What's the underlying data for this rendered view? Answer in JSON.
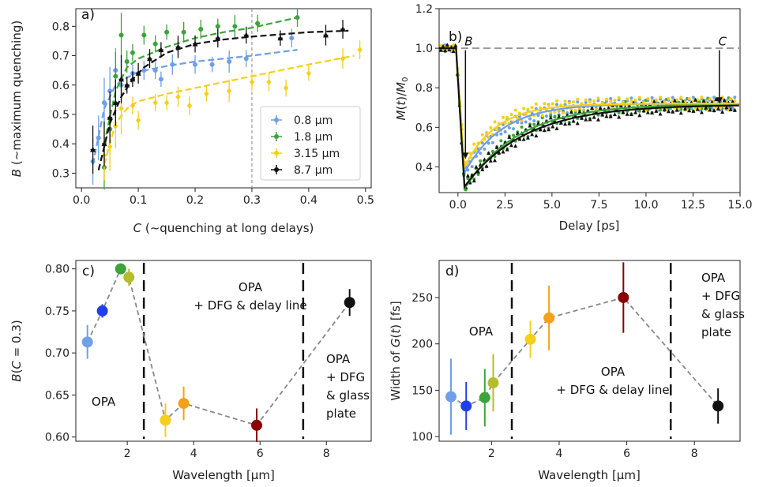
{
  "chart_data": [
    {
      "panel": "a)",
      "type": "scatter",
      "xlabel": "C (~quenching at long delays)",
      "ylabel": "B (~maximum quenching)",
      "xlim": [
        -0.01,
        0.51
      ],
      "ylim": [
        0.25,
        0.86
      ],
      "xticks": [
        "0.0",
        "0.1",
        "0.2",
        "0.3",
        "0.4",
        "0.5"
      ],
      "yticks": [
        "0.3",
        "0.4",
        "0.5",
        "0.6",
        "0.7",
        "0.8"
      ],
      "vline_x": 0.3,
      "legend_position": "lower-right",
      "series": [
        {
          "name": "0.8 μm",
          "color": "#6f9fe6",
          "fit_x": [
            0.02,
            0.04,
            0.06,
            0.08,
            0.1,
            0.15,
            0.2,
            0.25,
            0.3,
            0.38
          ],
          "fit_y": [
            0.33,
            0.52,
            0.6,
            0.625,
            0.645,
            0.665,
            0.68,
            0.69,
            0.7,
            0.72
          ],
          "points": [
            [
              0.02,
              0.34
            ],
            [
              0.03,
              0.42
            ],
            [
              0.04,
              0.54
            ],
            [
              0.05,
              0.58
            ],
            [
              0.06,
              0.65
            ],
            [
              0.07,
              0.6
            ],
            [
              0.09,
              0.64
            ],
            [
              0.11,
              0.65
            ],
            [
              0.13,
              0.65
            ],
            [
              0.14,
              0.62
            ],
            [
              0.16,
              0.67
            ],
            [
              0.2,
              0.67
            ],
            [
              0.23,
              0.67
            ],
            [
              0.26,
              0.68
            ],
            [
              0.29,
              0.69
            ],
            [
              0.37,
              0.76
            ]
          ]
        },
        {
          "name": "1.8 μm",
          "color": "#3da33a",
          "fit_x": [
            0.04,
            0.06,
            0.08,
            0.1,
            0.15,
            0.2,
            0.25,
            0.3,
            0.38
          ],
          "fit_y": [
            0.4,
            0.58,
            0.66,
            0.69,
            0.73,
            0.76,
            0.78,
            0.795,
            0.83
          ],
          "points": [
            [
              0.04,
              0.32
            ],
            [
              0.05,
              0.45
            ],
            [
              0.06,
              0.63
            ],
            [
              0.07,
              0.77
            ],
            [
              0.08,
              0.68
            ],
            [
              0.09,
              0.71
            ],
            [
              0.11,
              0.77
            ],
            [
              0.13,
              0.74
            ],
            [
              0.15,
              0.78
            ],
            [
              0.18,
              0.78
            ],
            [
              0.21,
              0.79
            ],
            [
              0.24,
              0.8
            ],
            [
              0.27,
              0.8
            ],
            [
              0.31,
              0.81
            ],
            [
              0.38,
              0.83
            ]
          ]
        },
        {
          "name": "3.15 μm",
          "color": "#f6cf1b",
          "fit_x": [
            0.04,
            0.06,
            0.08,
            0.1,
            0.15,
            0.2,
            0.25,
            0.3,
            0.4,
            0.48
          ],
          "fit_y": [
            0.33,
            0.47,
            0.52,
            0.545,
            0.57,
            0.59,
            0.61,
            0.63,
            0.67,
            0.7
          ],
          "points": [
            [
              0.04,
              0.36
            ],
            [
              0.05,
              0.39
            ],
            [
              0.06,
              0.46
            ],
            [
              0.07,
              0.52
            ],
            [
              0.09,
              0.53
            ],
            [
              0.1,
              0.48
            ],
            [
              0.13,
              0.54
            ],
            [
              0.15,
              0.54
            ],
            [
              0.17,
              0.56
            ],
            [
              0.19,
              0.53
            ],
            [
              0.22,
              0.57
            ],
            [
              0.26,
              0.58
            ],
            [
              0.3,
              0.61
            ],
            [
              0.33,
              0.61
            ],
            [
              0.36,
              0.59
            ],
            [
              0.4,
              0.64
            ],
            [
              0.46,
              0.69
            ],
            [
              0.49,
              0.72
            ]
          ]
        },
        {
          "name": "8.7 μm",
          "color": "#111111",
          "fit_x": [
            0.03,
            0.05,
            0.07,
            0.09,
            0.11,
            0.15,
            0.2,
            0.25,
            0.3,
            0.4,
            0.47
          ],
          "fit_y": [
            0.31,
            0.47,
            0.56,
            0.62,
            0.66,
            0.71,
            0.74,
            0.755,
            0.765,
            0.78,
            0.785
          ],
          "points": [
            [
              0.02,
              0.38
            ],
            [
              0.04,
              0.4
            ],
            [
              0.05,
              0.49
            ],
            [
              0.06,
              0.54
            ],
            [
              0.07,
              0.62
            ],
            [
              0.08,
              0.6
            ],
            [
              0.09,
              0.62
            ],
            [
              0.1,
              0.64
            ],
            [
              0.12,
              0.69
            ],
            [
              0.14,
              0.72
            ],
            [
              0.17,
              0.73
            ],
            [
              0.2,
              0.74
            ],
            [
              0.24,
              0.76
            ],
            [
              0.29,
              0.77
            ],
            [
              0.35,
              0.76
            ],
            [
              0.43,
              0.77
            ],
            [
              0.46,
              0.79
            ]
          ]
        }
      ]
    },
    {
      "panel": "b)",
      "type": "line",
      "xlabel": "Delay [ps]",
      "ylabel": "M(t)/M0",
      "xlim": [
        -1,
        15
      ],
      "ylim": [
        0.27,
        1.2
      ],
      "xticks": [
        "0.0",
        "2.5",
        "5.0",
        "7.5",
        "10.0",
        "12.5",
        "15.0"
      ],
      "yticks": [
        "0.4",
        "0.6",
        "0.8",
        "1.0",
        "1.2"
      ],
      "hline_y": 1.0,
      "annotations": [
        {
          "text": "B",
          "x": 0.4,
          "arrow_from": 0.99,
          "arrow_to": 0.44
        },
        {
          "text": "C",
          "x": 13.9,
          "arrow_from": 0.99,
          "arrow_to": 0.72
        }
      ],
      "series": [
        {
          "name": "0.8 μm",
          "color": "#6f9fe6",
          "B": 0.37,
          "C": 0.72,
          "tau": 2.0
        },
        {
          "name": "1.8 μm",
          "color": "#3da33a",
          "B": 0.29,
          "C": 0.72,
          "tau": 2.9
        },
        {
          "name": "3.15 μm",
          "color": "#f6cf1b",
          "B": 0.4,
          "C": 0.72,
          "tau": 1.7
        },
        {
          "name": "8.7 μm",
          "color": "#111111",
          "B": 0.3,
          "C": 0.715,
          "tau": 3.2
        }
      ]
    },
    {
      "panel": "c)",
      "type": "scatter",
      "xlabel": "Wavelength [μm]",
      "ylabel": "B(C = 0.3)",
      "xlim": [
        0.45,
        9.35
      ],
      "ylim": [
        0.595,
        0.81
      ],
      "xticks": [
        "2",
        "4",
        "6",
        "8"
      ],
      "yticks": [
        "0.60",
        "0.65",
        "0.70",
        "0.75",
        "0.80"
      ],
      "dividers": [
        2.5,
        7.3
      ],
      "region_labels": [
        {
          "lines": [
            "OPA"
          ]
        },
        {
          "lines": [
            "OPA",
            "+ DFG & delay line"
          ]
        },
        {
          "lines": [
            "OPA",
            "+ DFG",
            "& glass",
            "plate"
          ]
        }
      ],
      "points": [
        {
          "x": 0.8,
          "y": 0.713,
          "err": 0.02,
          "color": "#6f9fe6"
        },
        {
          "x": 1.25,
          "y": 0.75,
          "err": 0.008,
          "color": "#1f3fe8"
        },
        {
          "x": 1.8,
          "y": 0.8,
          "err": 0.0,
          "color": "#3da33a"
        },
        {
          "x": 2.05,
          "y": 0.79,
          "err": 0.01,
          "color": "#b5bd2d"
        },
        {
          "x": 3.15,
          "y": 0.62,
          "err": 0.02,
          "color": "#f6cf1b"
        },
        {
          "x": 3.7,
          "y": 0.64,
          "err": 0.02,
          "color": "#f5a01b"
        },
        {
          "x": 5.9,
          "y": 0.614,
          "err": 0.02,
          "color": "#8b0000"
        },
        {
          "x": 8.7,
          "y": 0.76,
          "err": 0.016,
          "color": "#111111"
        }
      ]
    },
    {
      "panel": "d)",
      "type": "scatter",
      "xlabel": "Wavelength [μm]",
      "ylabel": "Width of G(t) [fs]",
      "xlim": [
        0.45,
        9.35
      ],
      "ylim": [
        95,
        290
      ],
      "xticks": [
        "2",
        "4",
        "6",
        "8"
      ],
      "yticks": [
        "100",
        "150",
        "200",
        "250"
      ],
      "dividers": [
        2.6,
        7.3
      ],
      "region_labels": [
        {
          "lines": [
            "OPA"
          ]
        },
        {
          "lines": [
            "OPA",
            "+ DFG & delay line"
          ]
        },
        {
          "lines": [
            "OPA",
            "+ DFG",
            "& glass",
            "plate"
          ]
        }
      ],
      "points": [
        {
          "x": 0.8,
          "y": 143,
          "err": 41,
          "color": "#6f9fe6"
        },
        {
          "x": 1.25,
          "y": 133,
          "err": 26,
          "color": "#1f3fe8"
        },
        {
          "x": 1.8,
          "y": 142,
          "err": 31,
          "color": "#3da33a"
        },
        {
          "x": 2.05,
          "y": 158,
          "err": 31,
          "color": "#b5bd2d"
        },
        {
          "x": 3.15,
          "y": 205,
          "err": 20,
          "color": "#f6cf1b"
        },
        {
          "x": 3.7,
          "y": 228,
          "err": 35,
          "color": "#f5a01b"
        },
        {
          "x": 5.9,
          "y": 250,
          "err": 38,
          "color": "#8b0000"
        },
        {
          "x": 8.7,
          "y": 133,
          "err": 19,
          "color": "#111111"
        }
      ]
    }
  ]
}
